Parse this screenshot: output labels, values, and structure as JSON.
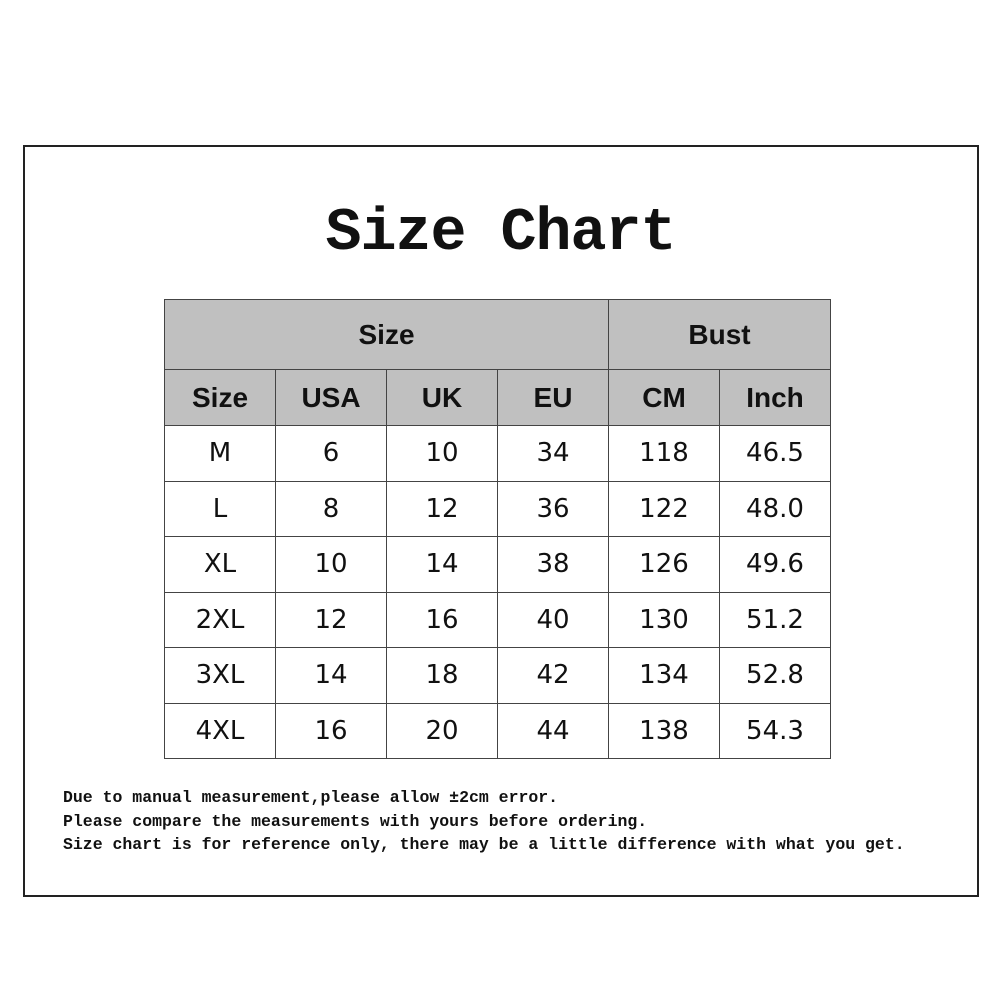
{
  "title": "Size Chart",
  "table": {
    "group_headers": [
      "Size",
      "Bust"
    ],
    "columns": [
      "Size",
      "USA",
      "UK",
      "EU",
      "CM",
      "Inch"
    ],
    "rows": [
      [
        "M",
        "6",
        "10",
        "34",
        "118",
        "46.5"
      ],
      [
        "L",
        "8",
        "12",
        "36",
        "122",
        "48.0"
      ],
      [
        "XL",
        "10",
        "14",
        "38",
        "126",
        "49.6"
      ],
      [
        "2XL",
        "12",
        "16",
        "40",
        "130",
        "51.2"
      ],
      [
        "3XL",
        "14",
        "18",
        "42",
        "134",
        "52.8"
      ],
      [
        "4XL",
        "16",
        "20",
        "44",
        "138",
        "54.3"
      ]
    ]
  },
  "notes": [
    "Due to manual measurement,please allow ±2cm error.",
    "Please compare the measurements with yours before ordering.",
    "Size chart is for reference only, there may be a little difference with what you get."
  ],
  "colors": {
    "header_bg": "#c0c0c0",
    "border": "#444444"
  }
}
